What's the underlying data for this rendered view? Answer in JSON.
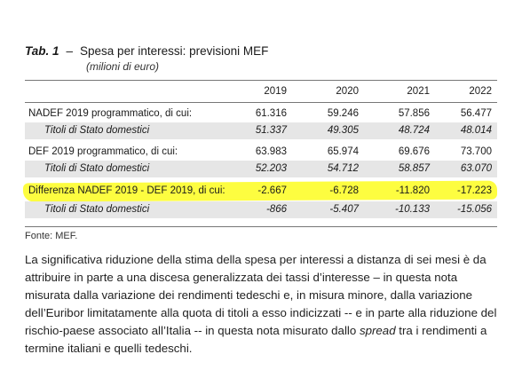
{
  "title": {
    "label": "Tab. 1",
    "dash": "–",
    "text": "Spesa per interessi: previsioni MEF",
    "subtitle": "(milioni di euro)"
  },
  "table": {
    "years": [
      "2019",
      "2020",
      "2021",
      "2022"
    ],
    "rows": [
      {
        "label": "NADEF 2019 programmatico, di cui:",
        "values": [
          "61.316",
          "59.246",
          "57.856",
          "56.477"
        ]
      },
      {
        "label": "Titoli di Stato domestici",
        "values": [
          "51.337",
          "49.305",
          "48.724",
          "48.014"
        ]
      },
      {
        "label": "DEF 2019 programmatico, di cui:",
        "values": [
          "63.983",
          "65.974",
          "69.676",
          "73.700"
        ]
      },
      {
        "label": "Titoli di Stato domestici",
        "values": [
          "52.203",
          "54.712",
          "58.857",
          "63.070"
        ]
      },
      {
        "label": "Differenza NADEF 2019 - DEF 2019, di cui:",
        "values": [
          "-2.667",
          "-6.728",
          "-11.820",
          "-17.223"
        ]
      },
      {
        "label": "Titoli di Stato domestici",
        "values": [
          "-866",
          "-5.407",
          "-10.133",
          "-15.056"
        ]
      }
    ],
    "highlight_color": "#fdfd40"
  },
  "source": "Fonte: MEF.",
  "paragraph": {
    "part1": "La significativa riduzione della stima della spesa per interessi a distanza di sei mesi è da attribuire in parte a una discesa generalizzata dei tassi d’interesse – in questa nota misurata dalla variazione dei rendimenti tedeschi e, in misura minore, dalla variazione dell’Euribor limitatamente alla quota di titoli a esso indicizzati -- e in parte alla riduzione del rischio-paese associato all’Italia -- in questa nota misurato dallo ",
    "emph": "spread",
    "part2": " tra i rendimenti a termine italiani e quelli tedeschi."
  }
}
